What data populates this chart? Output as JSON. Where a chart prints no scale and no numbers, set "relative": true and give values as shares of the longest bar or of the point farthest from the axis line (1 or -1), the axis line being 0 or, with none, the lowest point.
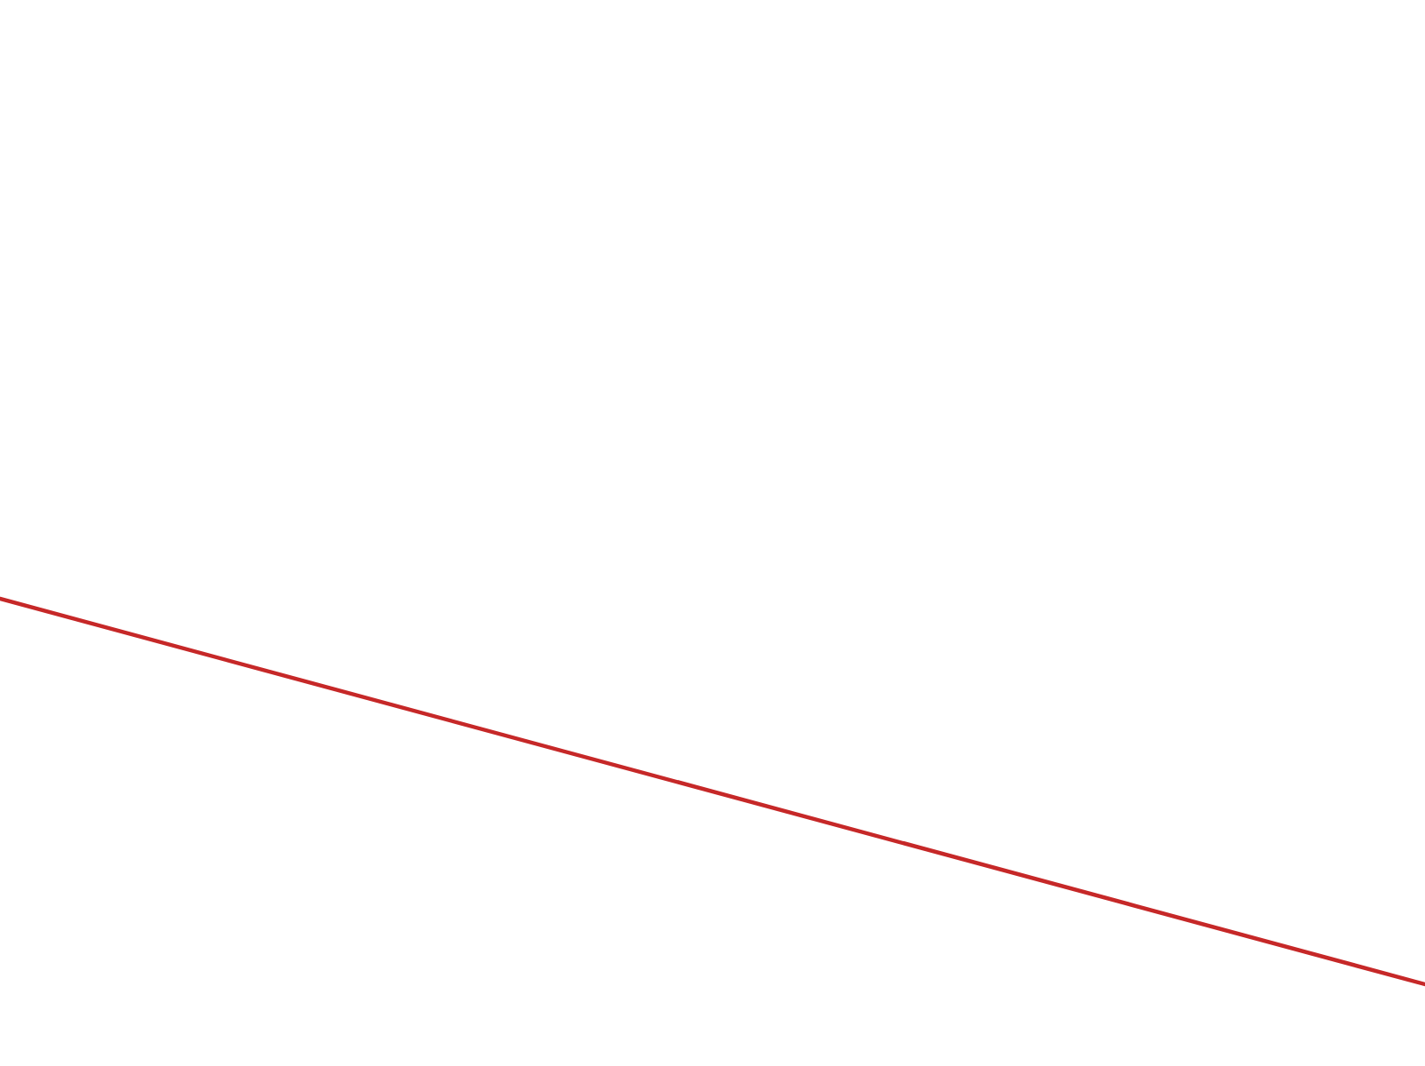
{
  "chart_data": {
    "type": "line",
    "relative": true,
    "categories": [
      null,
      null
    ],
    "series": [
      {
        "color": "#c62828",
        "values": [
          1,
          0
        ]
      }
    ],
    "marker": "none",
    "line_style": "solid"
  }
}
